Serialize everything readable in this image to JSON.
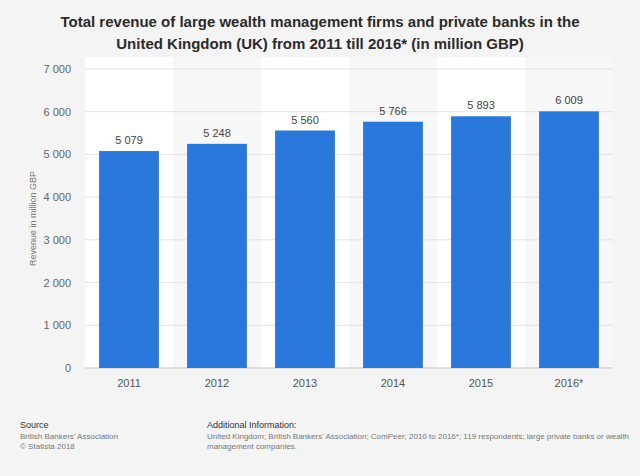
{
  "chart_data": {
    "type": "bar",
    "title": "Total revenue of large wealth management firms and private banks in the United Kingdom (UK) from 2011 till 2016* (in million GBP)",
    "y_label": "Revenue in million GBP",
    "categories": [
      "2011",
      "2012",
      "2013",
      "2014",
      "2015",
      "2016*"
    ],
    "values": [
      5079,
      5248,
      5560,
      5766,
      5893,
      6009
    ],
    "value_labels": [
      "5 079",
      "5 248",
      "5 560",
      "5 766",
      "5 893",
      "6 009"
    ],
    "color": "#2a78dc",
    "ylim": [
      0,
      7000
    ],
    "yticks": [
      0,
      {
        "value": 1000,
        "label": "1 000"
      },
      {
        "value": 2000,
        "label": "2 000"
      },
      {
        "value": 3000,
        "label": "3 000"
      },
      {
        "value": 4000,
        "label": "4 000"
      },
      {
        "value": 5000,
        "label": "5 000"
      },
      {
        "value": 6000,
        "label": "6 000"
      },
      {
        "value": 7000,
        "label": "7 000"
      }
    ],
    "grid": true,
    "data_labels": true,
    "source_label": "Source",
    "source": "British Bankers' Association",
    "copyright": "© Statista 2018",
    "additional_info_label": "Additional Information:",
    "additional_info": "United Kingdom; British Bankers' Association; ComPeer; 2010 to 2016*; 119 respondents; large private banks or wealth management companies."
  }
}
